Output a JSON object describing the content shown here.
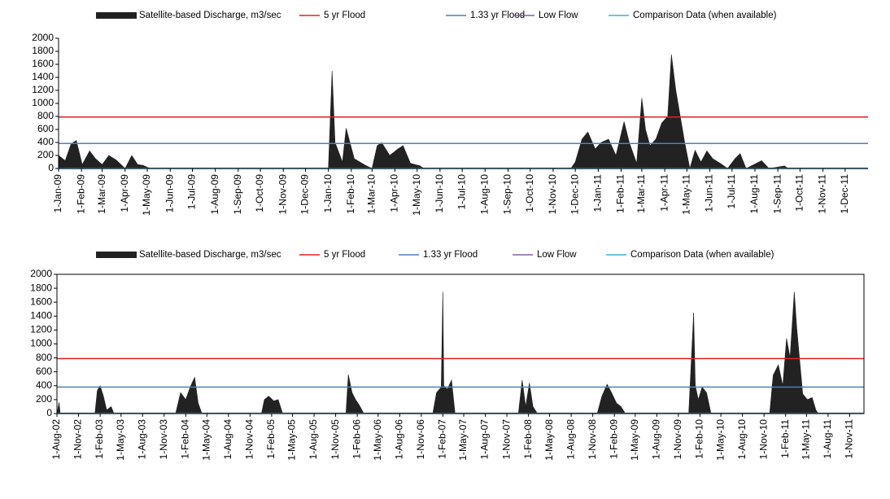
{
  "chart_data": [
    {
      "type": "area",
      "series": [
        {
          "name": "Satellite-based Discharge, m3/sec",
          "color": "#222222",
          "x": [
            "2009-01-01",
            "2009-01-10",
            "2009-01-18",
            "2009-01-25",
            "2009-02-02",
            "2009-02-12",
            "2009-02-20",
            "2009-03-01",
            "2009-03-10",
            "2009-03-20",
            "2009-04-01",
            "2009-04-10",
            "2009-04-18",
            "2009-04-25",
            "2009-05-05",
            "2010-01-01",
            "2010-01-06",
            "2010-01-10",
            "2010-01-20",
            "2010-01-25",
            "2010-02-05",
            "2010-02-20",
            "2010-03-01",
            "2010-03-08",
            "2010-03-14",
            "2010-03-25",
            "2010-04-05",
            "2010-04-12",
            "2010-04-22",
            "2010-05-05",
            "2010-05-10",
            "2010-11-25",
            "2010-12-01",
            "2010-12-10",
            "2010-12-18",
            "2010-12-28",
            "2011-01-05",
            "2011-01-15",
            "2011-01-25",
            "2011-02-05",
            "2011-02-12",
            "2011-02-22",
            "2011-03-01",
            "2011-03-06",
            "2011-03-12",
            "2011-03-20",
            "2011-03-28",
            "2011-04-05",
            "2011-04-10",
            "2011-04-16",
            "2011-04-22",
            "2011-04-28",
            "2011-05-05",
            "2011-05-12",
            "2011-05-20",
            "2011-05-28",
            "2011-06-05",
            "2011-06-15",
            "2011-06-25",
            "2011-07-05",
            "2011-07-12",
            "2011-07-20",
            "2011-08-10",
            "2011-08-20",
            "2011-09-10",
            "2011-09-15",
            "2011-12-31"
          ],
          "values": [
            200,
            120,
            380,
            430,
            60,
            270,
            150,
            60,
            200,
            130,
            0,
            200,
            60,
            50,
            0,
            0,
            1500,
            400,
            100,
            620,
            150,
            50,
            0,
            350,
            400,
            200,
            300,
            350,
            80,
            40,
            0,
            0,
            100,
            450,
            560,
            300,
            400,
            450,
            200,
            720,
            400,
            80,
            1080,
            600,
            350,
            450,
            700,
            800,
            1750,
            1200,
            800,
            400,
            0,
            280,
            100,
            270,
            150,
            80,
            0,
            150,
            230,
            0,
            120,
            0,
            40,
            0,
            0
          ]
        }
      ],
      "reference_lines": [
        {
          "name": "5 yr Flood",
          "color": "#e02020",
          "value": 790
        },
        {
          "name": "1.33 yr Flood",
          "color": "#4f7fc0",
          "value": 385
        },
        {
          "name": "Low Flow",
          "color": "#8060a0",
          "value": 5
        },
        {
          "name": "Comparison Data (when available)",
          "color": "#40b0c8",
          "value": 0
        }
      ],
      "xlim": [
        "2009-01-01",
        "2012-01-01"
      ],
      "xticks": [
        {
          "value": "2009-01-01",
          "label": "1-Jan-09"
        },
        {
          "value": "2009-02-01",
          "label": "1-Feb-09"
        },
        {
          "value": "2009-03-01",
          "label": "1-Mar-09"
        },
        {
          "value": "2009-04-01",
          "label": "1-Apr-09"
        },
        {
          "value": "2009-05-01",
          "label": "1-May-09"
        },
        {
          "value": "2009-06-01",
          "label": "1-Jun-09"
        },
        {
          "value": "2009-07-01",
          "label": "1-Jul-09"
        },
        {
          "value": "2009-08-01",
          "label": "1-Aug-09"
        },
        {
          "value": "2009-09-01",
          "label": "1-Sep-09"
        },
        {
          "value": "2009-10-01",
          "label": "1-Oct-09"
        },
        {
          "value": "2009-11-01",
          "label": "1-Nov-09"
        },
        {
          "value": "2009-12-01",
          "label": "1-Dec-09"
        },
        {
          "value": "2010-01-01",
          "label": "1-Jan-10"
        },
        {
          "value": "2010-02-01",
          "label": "1-Feb-10"
        },
        {
          "value": "2010-03-01",
          "label": "1-Mar-10"
        },
        {
          "value": "2010-04-01",
          "label": "1-Apr-10"
        },
        {
          "value": "2010-05-01",
          "label": "1-May-10"
        },
        {
          "value": "2010-06-01",
          "label": "1-Jun-10"
        },
        {
          "value": "2010-07-01",
          "label": "1-Jul-10"
        },
        {
          "value": "2010-08-01",
          "label": "1-Aug-10"
        },
        {
          "value": "2010-09-01",
          "label": "1-Sep-10"
        },
        {
          "value": "2010-10-01",
          "label": "1-Oct-10"
        },
        {
          "value": "2010-11-01",
          "label": "1-Nov-10"
        },
        {
          "value": "2010-12-01",
          "label": "1-Dec-10"
        },
        {
          "value": "2011-01-01",
          "label": "1-Jan-11"
        },
        {
          "value": "2011-02-01",
          "label": "1-Feb-11"
        },
        {
          "value": "2011-03-01",
          "label": "1-Mar-11"
        },
        {
          "value": "2011-04-01",
          "label": "1-Apr-11"
        },
        {
          "value": "2011-05-01",
          "label": "1-May-11"
        },
        {
          "value": "2011-06-01",
          "label": "1-Jun-11"
        },
        {
          "value": "2011-07-01",
          "label": "1-Jul-11"
        },
        {
          "value": "2011-08-01",
          "label": "1-Aug-11"
        },
        {
          "value": "2011-09-01",
          "label": "1-Sep-11"
        },
        {
          "value": "2011-10-01",
          "label": "1-Oct-11"
        },
        {
          "value": "2011-11-01",
          "label": "1-Nov-11"
        },
        {
          "value": "2011-12-01",
          "label": "1-Dec-11"
        }
      ],
      "ylim": [
        0,
        2000
      ],
      "yticks": [
        0,
        200,
        400,
        600,
        800,
        1000,
        1200,
        1400,
        1600,
        1800,
        2000
      ],
      "frame": false
    },
    {
      "type": "area",
      "series": [
        {
          "name": "Satellite-based Discharge, m3/sec",
          "color": "#222222",
          "x": [
            "2002-08-01",
            "2002-08-10",
            "2002-08-15",
            "2003-01-10",
            "2003-01-20",
            "2003-02-01",
            "2003-02-15",
            "2003-03-01",
            "2003-03-20",
            "2003-04-01",
            "2003-12-20",
            "2004-01-10",
            "2004-02-01",
            "2004-02-20",
            "2004-03-10",
            "2004-03-25",
            "2004-04-10",
            "2004-12-20",
            "2005-01-01",
            "2005-01-20",
            "2005-02-10",
            "2005-03-01",
            "2005-03-20",
            "2005-12-15",
            "2005-12-25",
            "2006-01-10",
            "2006-01-25",
            "2006-02-10",
            "2006-03-01",
            "2006-12-20",
            "2007-01-05",
            "2007-01-25",
            "2007-02-01",
            "2007-02-05",
            "2007-02-20",
            "2007-03-10",
            "2007-03-25",
            "2007-12-20",
            "2008-01-05",
            "2008-01-20",
            "2008-02-05",
            "2008-02-20",
            "2008-03-10",
            "2008-11-20",
            "2008-12-10",
            "2009-01-01",
            "2009-01-20",
            "2009-02-10",
            "2009-03-01",
            "2009-03-20",
            "2009-12-15",
            "2010-01-05",
            "2010-01-12",
            "2010-01-25",
            "2010-02-10",
            "2010-03-01",
            "2010-03-20",
            "2010-11-25",
            "2010-12-10",
            "2011-01-01",
            "2011-01-20",
            "2011-02-05",
            "2011-02-20",
            "2011-03-10",
            "2011-03-20",
            "2011-04-01",
            "2011-04-15",
            "2011-05-05",
            "2011-05-25",
            "2011-06-10",
            "2011-06-20",
            "2011-12-31"
          ],
          "values": [
            0,
            160,
            0,
            0,
            330,
            400,
            250,
            50,
            100,
            0,
            0,
            300,
            200,
            380,
            520,
            150,
            0,
            0,
            200,
            250,
            180,
            200,
            0,
            0,
            560,
            300,
            200,
            120,
            0,
            0,
            300,
            380,
            1750,
            400,
            350,
            480,
            0,
            0,
            480,
            100,
            440,
            100,
            0,
            0,
            250,
            420,
            300,
            150,
            100,
            0,
            0,
            1450,
            400,
            200,
            380,
            300,
            0,
            0,
            550,
            700,
            400,
            1080,
            800,
            1750,
            1250,
            800,
            280,
            200,
            230,
            50,
            0,
            0
          ]
        }
      ],
      "reference_lines": [
        {
          "name": "5 yr Flood",
          "color": "#e02020",
          "value": 790
        },
        {
          "name": "1.33 yr Flood",
          "color": "#4f7fc0",
          "value": 380
        },
        {
          "name": "Low Flow",
          "color": "#8060a0",
          "value": 5
        },
        {
          "name": "Comparison Data (when available)",
          "color": "#40b0c8",
          "value": 0
        }
      ],
      "xlim": [
        "2002-08-01",
        "2012-01-01"
      ],
      "xticks": [
        {
          "value": "2002-08-01",
          "label": "1-Aug-02"
        },
        {
          "value": "2002-11-01",
          "label": "1-Nov-02"
        },
        {
          "value": "2003-02-01",
          "label": "1-Feb-03"
        },
        {
          "value": "2003-05-01",
          "label": "1-May-03"
        },
        {
          "value": "2003-08-01",
          "label": "1-Aug-03"
        },
        {
          "value": "2003-11-01",
          "label": "1-Nov-03"
        },
        {
          "value": "2004-02-01",
          "label": "1-Feb-04"
        },
        {
          "value": "2004-05-01",
          "label": "1-May-04"
        },
        {
          "value": "2004-08-01",
          "label": "1-Aug-04"
        },
        {
          "value": "2004-11-01",
          "label": "1-Nov-04"
        },
        {
          "value": "2005-02-01",
          "label": "1-Feb-05"
        },
        {
          "value": "2005-05-01",
          "label": "1-May-05"
        },
        {
          "value": "2005-08-01",
          "label": "1-Aug-05"
        },
        {
          "value": "2005-11-01",
          "label": "1-Nov-05"
        },
        {
          "value": "2006-02-01",
          "label": "1-Feb-06"
        },
        {
          "value": "2006-05-01",
          "label": "1-May-06"
        },
        {
          "value": "2006-08-01",
          "label": "1-Aug-06"
        },
        {
          "value": "2006-11-01",
          "label": "1-Nov-06"
        },
        {
          "value": "2007-02-01",
          "label": "1-Feb-07"
        },
        {
          "value": "2007-05-01",
          "label": "1-May-07"
        },
        {
          "value": "2007-08-01",
          "label": "1-Aug-07"
        },
        {
          "value": "2007-11-01",
          "label": "1-Nov-07"
        },
        {
          "value": "2008-02-01",
          "label": "1-Feb-08"
        },
        {
          "value": "2008-05-01",
          "label": "1-May-08"
        },
        {
          "value": "2008-08-01",
          "label": "1-Aug-08"
        },
        {
          "value": "2008-11-01",
          "label": "1-Nov-08"
        },
        {
          "value": "2009-02-01",
          "label": "1-Feb-09"
        },
        {
          "value": "2009-05-01",
          "label": "1-May-09"
        },
        {
          "value": "2009-08-01",
          "label": "1-Aug-09"
        },
        {
          "value": "2009-11-01",
          "label": "1-Nov-09"
        },
        {
          "value": "2010-02-01",
          "label": "1-Feb-10"
        },
        {
          "value": "2010-05-01",
          "label": "1-May-10"
        },
        {
          "value": "2010-08-01",
          "label": "1-Aug-10"
        },
        {
          "value": "2010-11-01",
          "label": "1-Nov-10"
        },
        {
          "value": "2011-02-01",
          "label": "1-Feb-11"
        },
        {
          "value": "2011-05-01",
          "label": "1-May-11"
        },
        {
          "value": "2011-08-01",
          "label": "1-Aug-11"
        },
        {
          "value": "2011-11-01",
          "label": "1-Nov-11"
        }
      ],
      "ylim": [
        0,
        2000
      ],
      "yticks": [
        0,
        200,
        400,
        600,
        800,
        1000,
        1200,
        1400,
        1600,
        1800,
        2000
      ],
      "frame": true
    }
  ]
}
